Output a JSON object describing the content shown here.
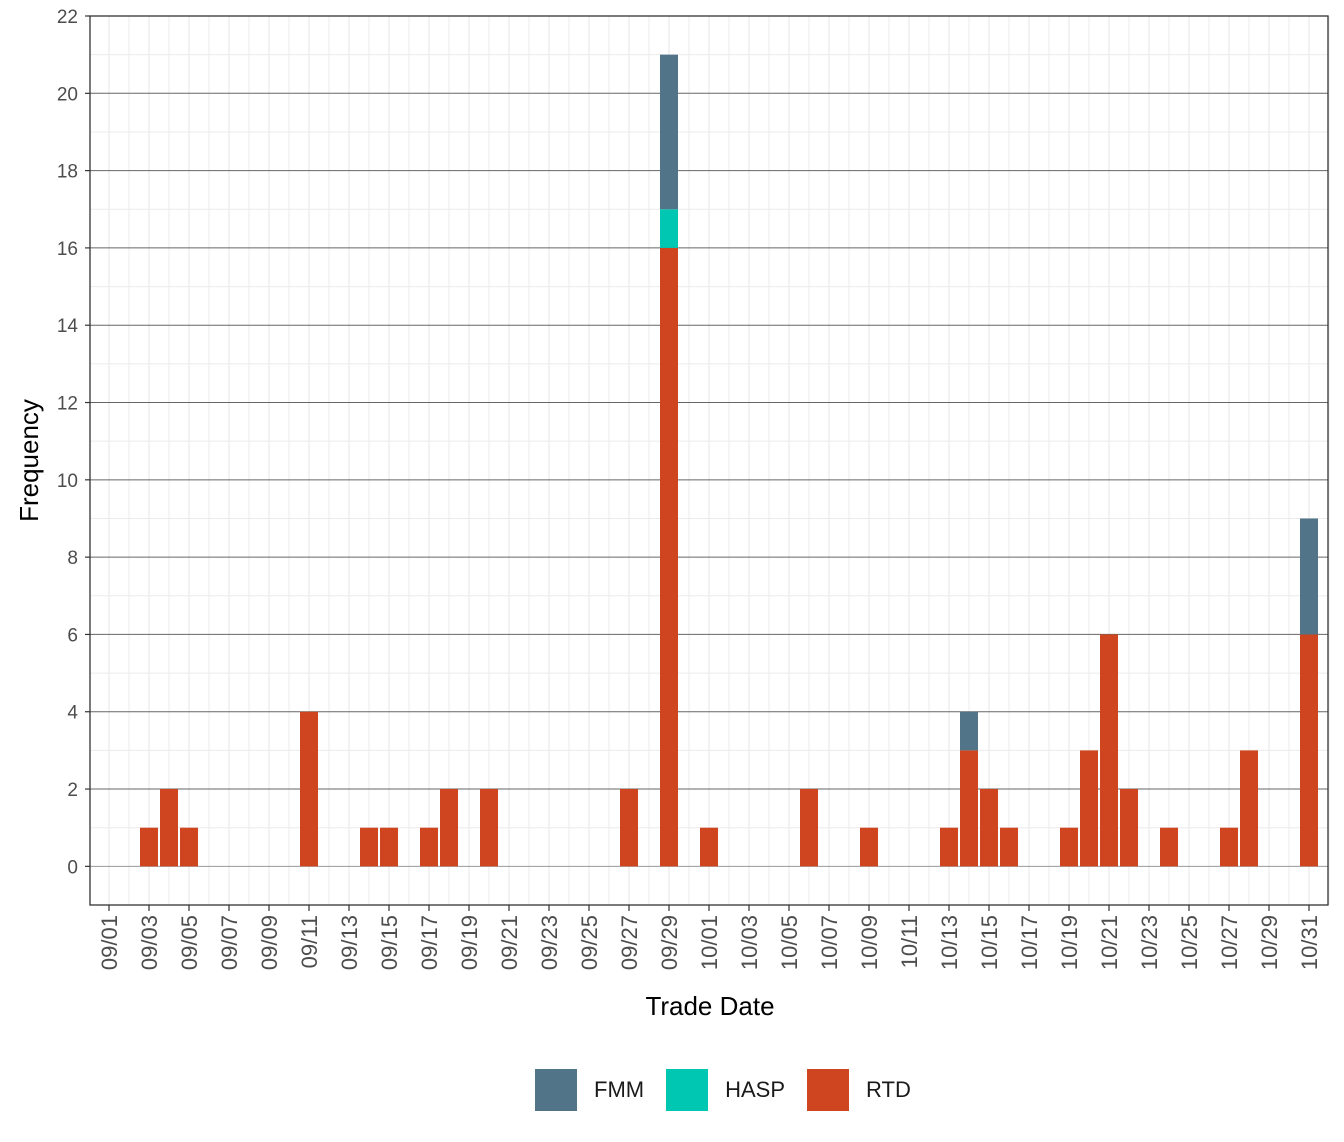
{
  "chart_data": {
    "type": "bar",
    "stacked": true,
    "title": "",
    "xlabel": "Trade Date",
    "ylabel": "Frequency",
    "ylim": [
      -1,
      22
    ],
    "yticks": [
      0,
      2,
      4,
      6,
      8,
      10,
      12,
      14,
      16,
      18,
      20,
      22
    ],
    "xtick_labels": [
      "09/01",
      "09/03",
      "09/05",
      "09/07",
      "09/09",
      "09/11",
      "09/13",
      "09/15",
      "09/17",
      "09/19",
      "09/21",
      "09/23",
      "09/25",
      "09/27",
      "09/29",
      "10/01",
      "10/03",
      "10/05",
      "10/07",
      "10/09",
      "10/11",
      "10/13",
      "10/15",
      "10/17",
      "10/19",
      "10/21",
      "10/23",
      "10/25",
      "10/27",
      "10/29",
      "10/31"
    ],
    "grid": true,
    "legend_position": "bottom",
    "categories": [
      "09/03",
      "09/04",
      "09/05",
      "09/11",
      "09/14",
      "09/15",
      "09/17",
      "09/18",
      "09/20",
      "09/27",
      "09/29",
      "10/01",
      "10/06",
      "10/09",
      "10/13",
      "10/14",
      "10/15",
      "10/16",
      "10/19",
      "10/20",
      "10/21",
      "10/22",
      "10/24",
      "10/27",
      "10/28",
      "10/31"
    ],
    "series": [
      {
        "name": "RTD",
        "color": "#CF4520",
        "values": [
          1,
          2,
          1,
          4,
          1,
          1,
          1,
          2,
          2,
          2,
          16,
          1,
          2,
          1,
          1,
          3,
          2,
          1,
          1,
          3,
          6,
          2,
          1,
          1,
          3,
          6
        ]
      },
      {
        "name": "HASP",
        "color": "#00C7B1",
        "values": [
          0,
          0,
          0,
          0,
          0,
          0,
          0,
          0,
          0,
          0,
          1,
          0,
          0,
          0,
          0,
          0,
          0,
          0,
          0,
          0,
          0,
          0,
          0,
          0,
          0,
          0
        ]
      },
      {
        "name": "FMM",
        "color": "#517489",
        "values": [
          0,
          0,
          0,
          0,
          0,
          0,
          0,
          0,
          0,
          0,
          4,
          0,
          0,
          0,
          0,
          1,
          0,
          0,
          0,
          0,
          0,
          0,
          0,
          0,
          0,
          3
        ]
      }
    ]
  },
  "legend": {
    "items": [
      {
        "label": "FMM",
        "color": "#517489"
      },
      {
        "label": "HASP",
        "color": "#00C7B1"
      },
      {
        "label": "RTD",
        "color": "#CF4520"
      }
    ]
  }
}
